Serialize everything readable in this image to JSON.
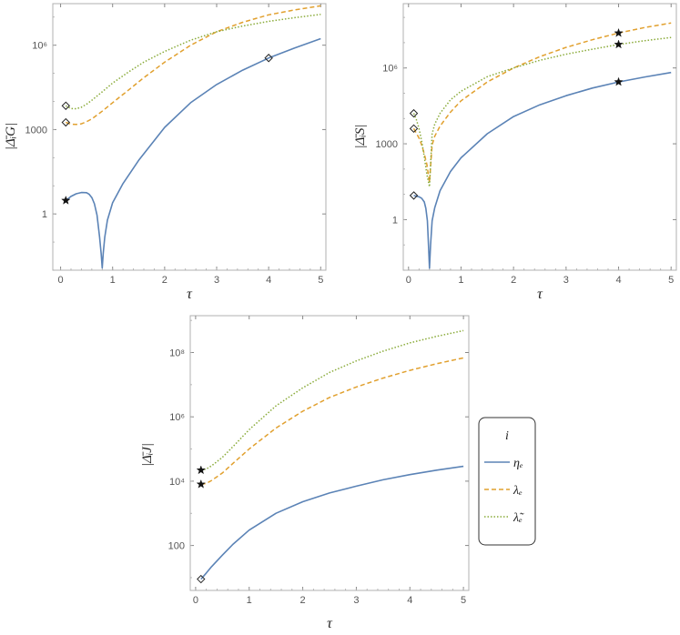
{
  "legend": {
    "title": "i",
    "entries": [
      {
        "key": "eta",
        "label": "ηₑ"
      },
      {
        "key": "lam",
        "label": "λₑ"
      },
      {
        "key": "lamt",
        "label": "λ̃ₑ"
      }
    ]
  },
  "chart_data": [
    {
      "type": "line",
      "title": "",
      "xlabel": "τ",
      "ylabel": "|Δ̄ᵢG|",
      "yscale": "log",
      "xlim": [
        -0.15,
        5.1
      ],
      "ylim": [
        0.01,
        30000000.0
      ],
      "xticks": [
        0,
        1,
        2,
        3,
        4,
        5
      ],
      "xtick_labels": [
        "0",
        "1",
        "2",
        "3",
        "4",
        "5"
      ],
      "yticks": [
        1,
        1000,
        1000000
      ],
      "ytick_labels": [
        "1",
        "1000",
        "10⁶"
      ],
      "series": [
        {
          "name": "ηₑ",
          "key": "eta",
          "color": "#5b83b6",
          "dash": "solid",
          "x": [
            0.1,
            0.2,
            0.3,
            0.4,
            0.5,
            0.55,
            0.6,
            0.65,
            0.7,
            0.75,
            0.78,
            0.8,
            0.82,
            0.85,
            0.9,
            1.0,
            1.2,
            1.5,
            2.0,
            2.5,
            3.0,
            3.5,
            4.0,
            4.5,
            5.0
          ],
          "y": [
            3.0,
            4.2,
            5.2,
            5.8,
            5.7,
            5.0,
            3.8,
            2.3,
            0.9,
            0.15,
            0.04,
            0.012,
            0.04,
            0.15,
            0.6,
            2.5,
            12,
            80,
            1200,
            9000,
            40000,
            130000,
            350000,
            800000,
            1700000
          ]
        },
        {
          "name": "λₑ",
          "key": "lam",
          "color": "#e1a02e",
          "dash": "dashed",
          "x": [
            0.1,
            0.2,
            0.3,
            0.4,
            0.5,
            0.6,
            0.8,
            1.0,
            1.3,
            1.6,
            2.0,
            2.5,
            3.0,
            3.5,
            4.0,
            4.5,
            5.0
          ],
          "y": [
            1800,
            1550,
            1520,
            1600,
            1900,
            2400,
            4500,
            9000,
            25000,
            70000,
            250000,
            1000000,
            3000000,
            6500000,
            12000000,
            18000000,
            25000000
          ]
        },
        {
          "name": "λ̃ₑ",
          "key": "lamt",
          "color": "#8aab3a",
          "dash": "dotted",
          "x": [
            0.1,
            0.2,
            0.3,
            0.4,
            0.5,
            0.6,
            0.8,
            1.0,
            1.3,
            1.6,
            2.0,
            2.5,
            3.0,
            3.5,
            4.0,
            4.5,
            5.0
          ],
          "y": [
            7000,
            5600,
            5500,
            6200,
            8000,
            11000,
            22000,
            45000,
            110000,
            250000,
            600000,
            1500000,
            3000000,
            4800000,
            7000000,
            9500000,
            12500000
          ]
        }
      ],
      "markers": [
        {
          "series": "eta",
          "shape": "star",
          "x": 0.1,
          "y": 3.0
        },
        {
          "series": "eta",
          "shape": "diamond",
          "x": 4.0,
          "y": 350000
        },
        {
          "series": "lam",
          "shape": "diamond",
          "x": 0.1,
          "y": 1800
        },
        {
          "series": "lamt",
          "shape": "diamond",
          "x": 0.1,
          "y": 7000
        }
      ]
    },
    {
      "type": "line",
      "title": "",
      "xlabel": "τ",
      "ylabel": "|Δ̄ᵢS|",
      "yscale": "log",
      "xlim": [
        -0.1,
        5.1
      ],
      "ylim": [
        0.01,
        350000000.0
      ],
      "xticks": [
        0,
        1,
        2,
        3,
        4,
        5
      ],
      "xtick_labels": [
        "0",
        "1",
        "2",
        "3",
        "4",
        "5"
      ],
      "yticks": [
        1,
        1000,
        1000000
      ],
      "ytick_labels": [
        "1",
        "1000",
        "10⁶"
      ],
      "series": [
        {
          "name": "ηₑ",
          "key": "eta",
          "color": "#5b83b6",
          "dash": "solid",
          "x": [
            0.1,
            0.15,
            0.2,
            0.25,
            0.3,
            0.33,
            0.36,
            0.38,
            0.4,
            0.42,
            0.45,
            0.5,
            0.6,
            0.8,
            1.0,
            1.5,
            2.0,
            2.5,
            3.0,
            3.5,
            4.0,
            4.5,
            5.0
          ],
          "y": [
            9,
            8.5,
            8,
            7,
            5,
            2.8,
            0.9,
            0.1,
            0.012,
            0.1,
            0.9,
            3,
            14,
            80,
            280,
            2500,
            12000,
            35000,
            80000,
            160000,
            280000,
            440000,
            660000
          ]
        },
        {
          "name": "λₑ",
          "key": "lam",
          "color": "#e1a02e",
          "dash": "dashed",
          "x": [
            0.1,
            0.15,
            0.2,
            0.25,
            0.3,
            0.35,
            0.4,
            0.45,
            0.5,
            0.6,
            0.8,
            1.0,
            1.5,
            2.0,
            2.5,
            3.0,
            3.5,
            4.0,
            4.5,
            5.0
          ],
          "y": [
            4000,
            2600,
            1700,
            900,
            400,
            150,
            30,
            900,
            2000,
            5000,
            18000,
            50000,
            280000,
            1000000,
            2800000,
            6500000,
            13000000,
            24000000,
            40000000,
            60000000
          ]
        },
        {
          "name": "λ̃ₑ",
          "key": "lamt",
          "color": "#8aab3a",
          "dash": "dotted",
          "x": [
            0.1,
            0.15,
            0.2,
            0.25,
            0.3,
            0.35,
            0.4,
            0.45,
            0.5,
            0.6,
            0.8,
            1.0,
            1.5,
            2.0,
            2.5,
            3.0,
            3.5,
            4.0,
            4.5,
            5.0
          ],
          "y": [
            16000,
            9000,
            4000,
            1300,
            300,
            60,
            20,
            2500,
            6000,
            16000,
            55000,
            120000,
            450000,
            1000000,
            2000000,
            3500000,
            5500000,
            8500000,
            12000000,
            16000000
          ]
        }
      ],
      "markers": [
        {
          "series": "eta",
          "shape": "diamond",
          "x": 0.1,
          "y": 9
        },
        {
          "series": "eta",
          "shape": "star",
          "x": 4.0,
          "y": 280000
        },
        {
          "series": "lam",
          "shape": "diamond",
          "x": 0.1,
          "y": 4000
        },
        {
          "series": "lam",
          "shape": "star",
          "x": 4.0,
          "y": 24000000
        },
        {
          "series": "lamt",
          "shape": "diamond",
          "x": 0.1,
          "y": 16000
        },
        {
          "series": "lamt",
          "shape": "star",
          "x": 4.0,
          "y": 8500000
        }
      ]
    },
    {
      "type": "line",
      "title": "",
      "xlabel": "τ",
      "ylabel": "|Δ̄ᵢJ|",
      "yscale": "log",
      "xlim": [
        -0.1,
        5.1
      ],
      "ylim": [
        4,
        1400000000.0
      ],
      "xticks": [
        0,
        1,
        2,
        3,
        4,
        5
      ],
      "xtick_labels": [
        "0",
        "1",
        "2",
        "3",
        "4",
        "5"
      ],
      "yticks": [
        100,
        10000,
        1000000,
        100000000
      ],
      "ytick_labels": [
        "100",
        "10⁴",
        "10⁶",
        "10⁸"
      ],
      "series": [
        {
          "name": "ηₑ",
          "key": "eta",
          "color": "#5b83b6",
          "dash": "solid",
          "x": [
            0.1,
            0.2,
            0.3,
            0.5,
            0.7,
            1.0,
            1.5,
            2.0,
            2.5,
            3.0,
            3.5,
            4.0,
            4.5,
            5.0
          ],
          "y": [
            9,
            14,
            22,
            50,
            110,
            300,
            1000,
            2300,
            4300,
            7000,
            11000,
            16000,
            22000,
            29000
          ]
        },
        {
          "name": "λₑ",
          "key": "lam",
          "color": "#e1a02e",
          "dash": "dashed",
          "x": [
            0.1,
            0.2,
            0.3,
            0.5,
            0.7,
            1.0,
            1.5,
            2.0,
            2.5,
            3.0,
            3.5,
            4.0,
            4.5,
            5.0
          ],
          "y": [
            8000,
            8500,
            10500,
            18000,
            36000,
            100000,
            450000,
            1500000,
            4000000,
            8500000,
            16000000,
            28000000,
            45000000,
            68000000
          ]
        },
        {
          "name": "λ̃ₑ",
          "key": "lamt",
          "color": "#8aab3a",
          "dash": "dotted",
          "x": [
            0.1,
            0.2,
            0.3,
            0.5,
            0.7,
            1.0,
            1.5,
            2.0,
            2.5,
            3.0,
            3.5,
            4.0,
            4.5,
            5.0
          ],
          "y": [
            22000,
            24000,
            30000,
            55000,
            120000,
            400000,
            2200000,
            8000000,
            24000000,
            55000000,
            110000000,
            200000000,
            320000000,
            480000000
          ]
        }
      ],
      "markers": [
        {
          "series": "eta",
          "shape": "diamond",
          "x": 0.1,
          "y": 9
        },
        {
          "series": "lam",
          "shape": "star",
          "x": 0.1,
          "y": 8000
        },
        {
          "series": "lamt",
          "shape": "star",
          "x": 0.1,
          "y": 22000
        }
      ]
    }
  ]
}
